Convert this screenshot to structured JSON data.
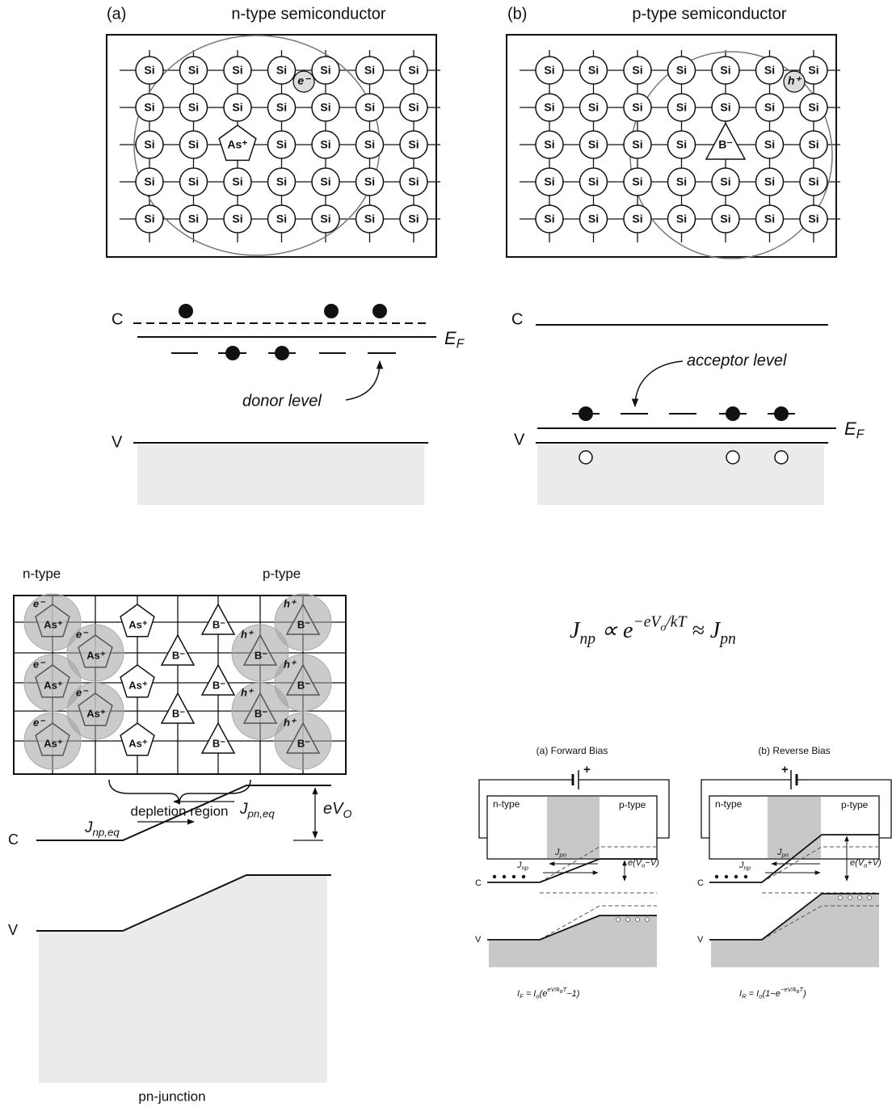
{
  "panel_a": {
    "label": "(a)",
    "title": "n-type semiconductor",
    "lattice": [
      [
        "Si",
        "Si",
        "Si",
        "Si",
        "Si",
        "Si",
        "Si"
      ],
      [
        "Si",
        "Si",
        "Si",
        "Si",
        "Si",
        "Si",
        "Si"
      ],
      [
        "Si",
        "Si",
        "As⁺",
        "Si",
        "Si",
        "Si",
        "Si"
      ],
      [
        "Si",
        "Si",
        "Si",
        "Si",
        "Si",
        "Si",
        "Si"
      ],
      [
        "Si",
        "Si",
        "Si",
        "Si",
        "Si",
        "Si",
        "Si"
      ]
    ],
    "carrier": "e⁻"
  },
  "panel_b": {
    "label": "(b)",
    "title": "p-type semiconductor",
    "lattice": [
      [
        "Si",
        "Si",
        "Si",
        "Si",
        "Si",
        "Si",
        "Si"
      ],
      [
        "Si",
        "Si",
        "Si",
        "Si",
        "Si",
        "Si",
        "Si"
      ],
      [
        "Si",
        "Si",
        "Si",
        "Si",
        "B⁻",
        "Si",
        "Si"
      ],
      [
        "Si",
        "Si",
        "Si",
        "Si",
        "Si",
        "Si",
        "Si"
      ],
      [
        "Si",
        "Si",
        "Si",
        "Si",
        "Si",
        "Si",
        "Si"
      ]
    ],
    "carrier": "h⁺"
  },
  "band_a": {
    "c": "C",
    "fermi": [
      {
        "text": "E"
      },
      {
        "sub": "F"
      }
    ],
    "level": "donor level",
    "v": "V"
  },
  "band_b": {
    "c": "C",
    "fermi": [
      {
        "text": "E"
      },
      {
        "sub": "F"
      }
    ],
    "level": "acceptor level",
    "v": "V"
  },
  "junction": {
    "n_label": "n-type",
    "p_label": "p-type",
    "cells": [
      [
        {
          "ion": "As⁺",
          "carrier": "e⁻"
        },
        null,
        {
          "ion": "As⁺"
        },
        null,
        {
          "ion": "B⁻"
        },
        null,
        {
          "ion": "B⁻",
          "carrier": "h⁺"
        }
      ],
      [
        null,
        {
          "ion": "As⁺",
          "carrier": "e⁻"
        },
        null,
        {
          "ion": "B⁻"
        },
        null,
        {
          "ion": "B⁻",
          "carrier": "h⁺"
        },
        null
      ],
      [
        {
          "ion": "As⁺",
          "carrier": "e⁻"
        },
        null,
        {
          "ion": "As⁺"
        },
        null,
        {
          "ion": "B⁻"
        },
        null,
        {
          "ion": "B⁻",
          "carrier": "h⁺"
        }
      ],
      [
        null,
        {
          "ion": "As⁺",
          "carrier": "e⁻"
        },
        null,
        {
          "ion": "B⁻"
        },
        null,
        {
          "ion": "B⁻",
          "carrier": "h⁺"
        },
        null
      ],
      [
        {
          "ion": "As⁺",
          "carrier": "e⁻"
        },
        null,
        {
          "ion": "As⁺"
        },
        null,
        {
          "ion": "B⁻"
        },
        null,
        {
          "ion": "B⁻",
          "carrier": "h⁺"
        }
      ]
    ],
    "depletion": "depletion region",
    "j_np": [
      {
        "text": "J"
      },
      {
        "sub": "np,eq"
      }
    ],
    "j_pn": [
      {
        "text": "J"
      },
      {
        "sub": "pn,eq"
      }
    ],
    "barrier": [
      {
        "text": "eV"
      },
      {
        "sub": "O"
      }
    ],
    "c": "C",
    "v": "V",
    "caption": "pn-junction"
  },
  "formula": [
    {
      "text": "J"
    },
    {
      "sub": "np"
    },
    {
      "text": " ∝ e"
    },
    {
      "sup": "−eV"
    },
    {
      "supsub": "o"
    },
    {
      "sup": "/kT"
    },
    {
      "text": "  ≈ J"
    },
    {
      "sub": "pn"
    }
  ],
  "forward": {
    "title": "(a) Forward Bias",
    "n": "n-type",
    "p": "p-type",
    "plus": "+",
    "j_np": [
      {
        "text": "J"
      },
      {
        "sub": "np"
      }
    ],
    "j_pn": [
      {
        "text": "J"
      },
      {
        "sub": "pn"
      }
    ],
    "c": "C",
    "v": "V",
    "barrier": [
      {
        "text": "e(V"
      },
      {
        "sub": "o"
      },
      {
        "text": "−V)"
      }
    ],
    "current": [
      {
        "text": "I"
      },
      {
        "sub": "F"
      },
      {
        "text": " = I"
      },
      {
        "sub": "o"
      },
      {
        "text": "(e"
      },
      {
        "sup": "eV/k"
      },
      {
        "supsub": "B"
      },
      {
        "sup": "T"
      },
      {
        "text": "−1)"
      }
    ]
  },
  "reverse": {
    "title": "(b) Reverse Bias",
    "n": "n-type",
    "p": "p-type",
    "plus": "+",
    "j_np": [
      {
        "text": "J"
      },
      {
        "sub": "np"
      }
    ],
    "j_pn": [
      {
        "text": "J"
      },
      {
        "sub": "pn"
      }
    ],
    "c": "C",
    "v": "V",
    "barrier": [
      {
        "text": "e(V"
      },
      {
        "sub": "o"
      },
      {
        "text": "+V)"
      }
    ],
    "current": [
      {
        "text": "I"
      },
      {
        "sub": "R"
      },
      {
        "text": " = I"
      },
      {
        "sub": "o"
      },
      {
        "text": "(1−e"
      },
      {
        "sup": "−eV/k"
      },
      {
        "supsub": "B"
      },
      {
        "sup": "T"
      },
      {
        "text": ")"
      }
    ]
  }
}
